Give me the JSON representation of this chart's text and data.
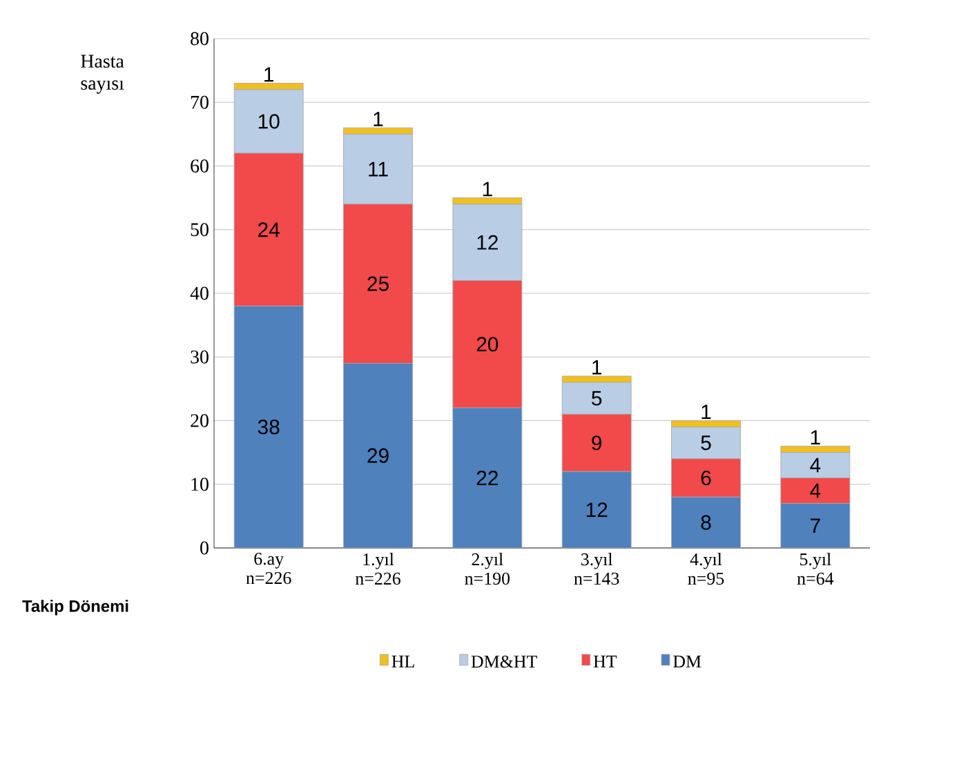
{
  "chart_data": {
    "type": "bar",
    "stacked": true,
    "ylabel": "Hasta sayısı",
    "xlabel": "Takip Dönemi",
    "categories": [
      "6.ay n=226",
      "1.yıl n=226",
      "2.yıl n=190",
      "3.yıl n=143",
      "4.yıl n=95",
      "5.yıl n=64"
    ],
    "series": [
      {
        "name": "DM",
        "color": "#4f81bd",
        "values": [
          38,
          29,
          22,
          12,
          8,
          7
        ]
      },
      {
        "name": "HT",
        "color": "#f24a4a",
        "values": [
          24,
          25,
          20,
          9,
          6,
          4
        ]
      },
      {
        "name": "DM&HT",
        "color": "#b9cde5",
        "values": [
          10,
          11,
          12,
          5,
          5,
          4
        ]
      },
      {
        "name": "HL",
        "color": "#f0c020",
        "values": [
          1,
          1,
          1,
          1,
          1,
          1
        ]
      }
    ],
    "ylim": [
      0,
      80
    ],
    "yticks": [
      0,
      10,
      20,
      30,
      40,
      50,
      60,
      70,
      80
    ],
    "grid": "y",
    "legend": "bottom",
    "data_labels": true
  }
}
